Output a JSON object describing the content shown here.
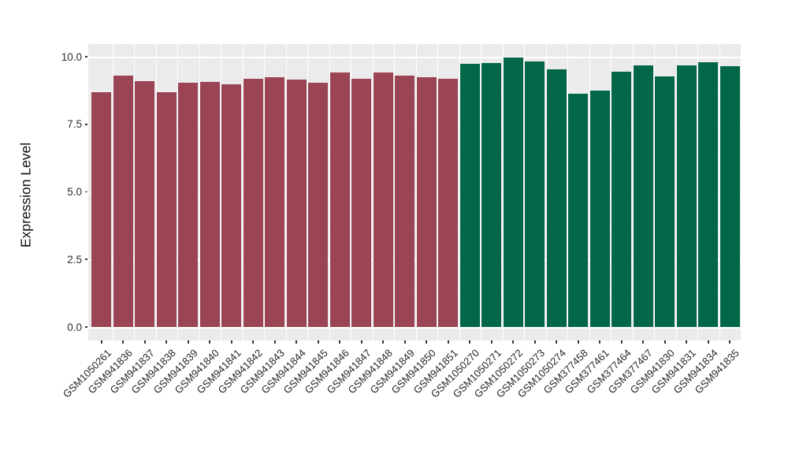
{
  "chart_data": {
    "type": "bar",
    "title": "",
    "xlabel": "",
    "ylabel": "Expression Level",
    "categories": [
      "GSM1050261",
      "GSM941836",
      "GSM941837",
      "GSM941838",
      "GSM941839",
      "GSM941840",
      "GSM941841",
      "GSM941842",
      "GSM941843",
      "GSM941844",
      "GSM941845",
      "GSM941846",
      "GSM941847",
      "GSM941848",
      "GSM941849",
      "GSM941850",
      "GSM941851",
      "GSM1050270",
      "GSM1050271",
      "GSM1050272",
      "GSM1050273",
      "GSM1050274",
      "GSM377458",
      "GSM377461",
      "GSM377464",
      "GSM377467",
      "GSM941830",
      "GSM941831",
      "GSM941834",
      "GSM941835"
    ],
    "values": [
      8.69,
      9.3,
      9.11,
      8.68,
      9.04,
      9.08,
      8.97,
      9.19,
      9.25,
      9.16,
      9.05,
      9.41,
      9.18,
      9.43,
      9.3,
      9.23,
      9.18,
      9.74,
      9.78,
      9.96,
      9.83,
      9.54,
      8.62,
      8.74,
      9.45,
      9.68,
      9.26,
      9.68,
      9.79,
      9.65
    ],
    "bar_group": [
      "A",
      "A",
      "A",
      "A",
      "A",
      "A",
      "A",
      "A",
      "A",
      "A",
      "A",
      "A",
      "A",
      "A",
      "A",
      "A",
      "A",
      "B",
      "B",
      "B",
      "B",
      "B",
      "B",
      "B",
      "B",
      "B",
      "B",
      "B",
      "B",
      "B"
    ],
    "group_colors": {
      "A": "#9A4454",
      "B": "#016748"
    },
    "ytick_values": [
      0,
      2.5,
      5,
      7.5,
      10
    ],
    "ytick_labels": [
      "0.0",
      "2.5",
      "5.0",
      "7.5",
      "10.0"
    ],
    "minor_ytick_values": [
      1.25,
      3.75,
      6.25,
      8.75
    ],
    "ylim": [
      0,
      10.45
    ],
    "grid": "on",
    "legend": "none",
    "panel_background": "#EBEBEB",
    "grid_color": "#FFFFFF",
    "axis_text_color": "#2f2f2f"
  }
}
